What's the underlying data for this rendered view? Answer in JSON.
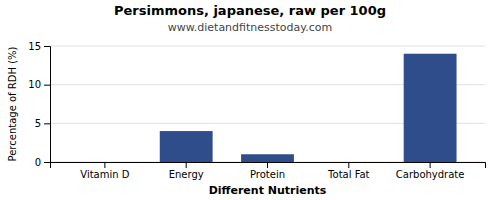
{
  "chart_data": {
    "type": "bar",
    "title": "Persimmons, japanese, raw per 100g",
    "subtitle": "www.dietandfitnesstoday.com",
    "xlabel": "Different Nutrients",
    "ylabel": "Percentage of RDH (%)",
    "categories": [
      "Vitamin D",
      "Energy",
      "Protein",
      "Total Fat",
      "Carbohydrate"
    ],
    "values": [
      0.0,
      4.0,
      1.0,
      0.0,
      14.0
    ],
    "color": "#2e4d8a",
    "ylim": [
      0,
      15
    ],
    "yticks": [
      0,
      5,
      10,
      15
    ],
    "grid": true
  }
}
